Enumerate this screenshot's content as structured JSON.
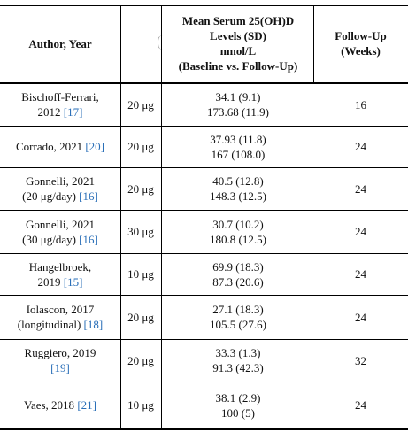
{
  "header": {
    "author_year": "Author, Year",
    "dose": "",
    "levels": [
      "Mean Serum 25(OH)D",
      "Levels (SD)",
      "nmol/L",
      "(Baseline vs. Follow-Up)"
    ],
    "follow_up": [
      "Follow-Up",
      "(Weeks)"
    ]
  },
  "rows": [
    {
      "author": [
        "Bischoff-Ferrari,",
        "2012 "
      ],
      "ref": "[17]",
      "dose": "20 μg",
      "baseline": "34.1 (9.1)",
      "followup": "173.68 (11.9)",
      "weeks": "16"
    },
    {
      "author": [
        "Corrado, 2021 "
      ],
      "ref": "[20]",
      "dose": "20 μg",
      "baseline": "37.93 (11.8)",
      "followup": "167 (108.0)",
      "weeks": "24"
    },
    {
      "author": [
        "Gonnelli, 2021",
        "(20 μg/day) "
      ],
      "ref": "[16]",
      "dose": "20 μg",
      "baseline": "40.5 (12.8)",
      "followup": "148.3 (12.5)",
      "weeks": "24"
    },
    {
      "author": [
        "Gonnelli, 2021",
        "(30 μg/day) "
      ],
      "ref": "[16]",
      "dose": "30 μg",
      "baseline": "30.7 (10.2)",
      "followup": "180.8 (12.5)",
      "weeks": "24"
    },
    {
      "author": [
        "Hangelbroek,",
        "2019 "
      ],
      "ref": "[15]",
      "dose": "10 μg",
      "baseline": "69.9 (18.3)",
      "followup": "87.3 (20.6)",
      "weeks": "24"
    },
    {
      "author": [
        "Iolascon, 2017",
        "(longitudinal) "
      ],
      "ref": "[18]",
      "dose": "20 μg",
      "baseline": "27.1 (18.3)",
      "followup": "105.5 (27.6)",
      "weeks": "24"
    },
    {
      "author": [
        "Ruggiero, 2019",
        ""
      ],
      "ref": "[19]",
      "dose": "20 μg",
      "baseline": "33.3 (1.3)",
      "followup": "91.3 (42.3)",
      "weeks": "32"
    },
    {
      "author": [
        "Vaes, 2018 "
      ],
      "ref": "[21]",
      "dose": "10 μg",
      "baseline": "38.1 (2.9)",
      "followup": "100 (5)",
      "weeks": "24"
    }
  ]
}
